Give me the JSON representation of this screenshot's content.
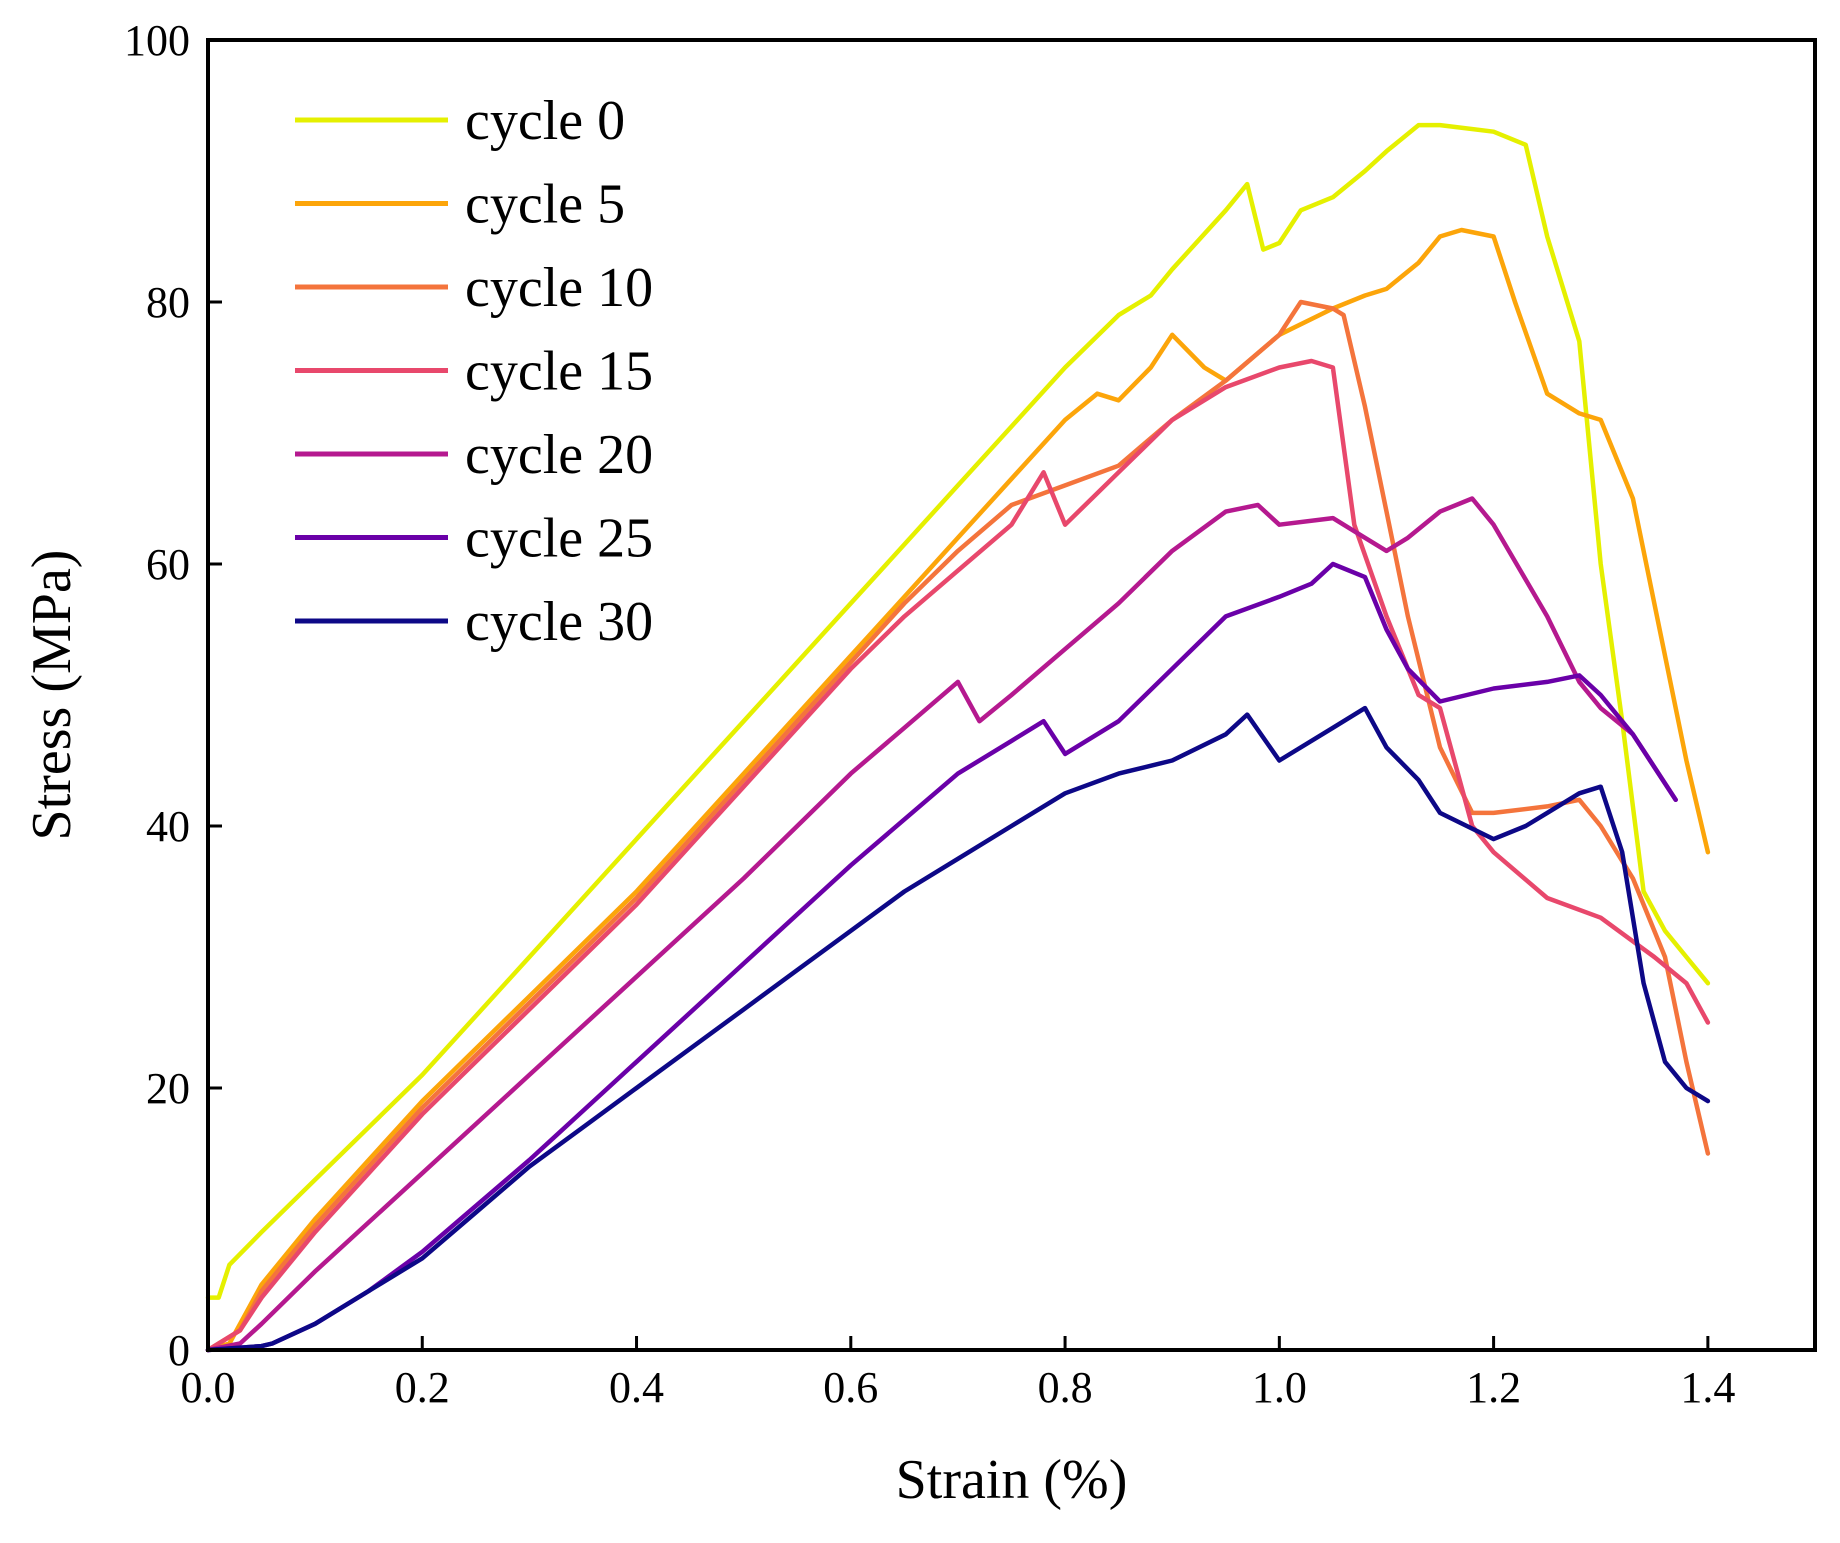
{
  "chart_data": {
    "type": "line",
    "title": "",
    "xlabel": "Strain (%)",
    "ylabel": "Stress (MPa)",
    "xlim": [
      0.0,
      1.5
    ],
    "ylim": [
      0,
      100
    ],
    "xticks": [
      0.0,
      0.2,
      0.4,
      0.6,
      0.8,
      1.0,
      1.2,
      1.4
    ],
    "xtick_labels": [
      "0.0",
      "0.2",
      "0.4",
      "0.6",
      "0.8",
      "1.0",
      "1.2",
      "1.4"
    ],
    "yticks": [
      0,
      20,
      40,
      60,
      80,
      100
    ],
    "ytick_labels": [
      "0",
      "20",
      "40",
      "60",
      "80",
      "100"
    ],
    "grid": false,
    "legend_position": "top-left",
    "series": [
      {
        "name": "cycle 0",
        "color": "#e5f000",
        "x": [
          0.0,
          0.01,
          0.02,
          0.05,
          0.1,
          0.15,
          0.2,
          0.25,
          0.3,
          0.35,
          0.4,
          0.45,
          0.5,
          0.55,
          0.6,
          0.65,
          0.7,
          0.75,
          0.8,
          0.85,
          0.88,
          0.9,
          0.95,
          0.97,
          0.985,
          1.0,
          1.02,
          1.05,
          1.08,
          1.1,
          1.13,
          1.15,
          1.2,
          1.23,
          1.25,
          1.28,
          1.3,
          1.32,
          1.34,
          1.36,
          1.38,
          1.4
        ],
        "y": [
          4,
          4,
          6.5,
          9,
          13,
          17,
          21,
          25.5,
          30,
          34.5,
          39,
          43.5,
          48,
          52.5,
          57,
          61.5,
          66,
          70.5,
          75,
          79,
          80.5,
          82.5,
          87,
          89,
          84,
          84.5,
          87,
          88,
          90,
          91.5,
          93.5,
          93.5,
          93,
          92,
          85,
          77,
          60,
          48,
          35,
          32,
          30,
          28
        ]
      },
      {
        "name": "cycle 5",
        "color": "#fca50a",
        "x": [
          0.0,
          0.02,
          0.05,
          0.1,
          0.15,
          0.2,
          0.25,
          0.3,
          0.35,
          0.4,
          0.45,
          0.5,
          0.55,
          0.6,
          0.65,
          0.7,
          0.75,
          0.8,
          0.83,
          0.85,
          0.88,
          0.9,
          0.93,
          0.95,
          1.0,
          1.05,
          1.08,
          1.1,
          1.13,
          1.15,
          1.17,
          1.2,
          1.22,
          1.25,
          1.28,
          1.3,
          1.33,
          1.35,
          1.38,
          1.4
        ],
        "y": [
          0,
          0.5,
          5,
          10,
          14.5,
          19,
          23,
          27,
          31,
          35,
          39.5,
          44,
          48.5,
          53,
          57.5,
          62,
          66.5,
          71,
          73,
          72.5,
          75,
          77.5,
          75,
          74,
          77.5,
          79.5,
          80.5,
          81,
          83,
          85,
          85.5,
          85,
          80,
          73,
          71.5,
          71,
          65,
          57,
          45,
          38
        ]
      },
      {
        "name": "cycle 10",
        "color": "#f4743c",
        "x": [
          0.0,
          0.03,
          0.05,
          0.1,
          0.15,
          0.2,
          0.25,
          0.3,
          0.35,
          0.4,
          0.45,
          0.5,
          0.55,
          0.6,
          0.65,
          0.7,
          0.75,
          0.8,
          0.85,
          0.9,
          0.95,
          1.0,
          1.02,
          1.05,
          1.06,
          1.08,
          1.1,
          1.12,
          1.15,
          1.18,
          1.2,
          1.25,
          1.28,
          1.3,
          1.33,
          1.36,
          1.38,
          1.4
        ],
        "y": [
          0,
          1.5,
          4.5,
          9.5,
          14,
          18.5,
          22.5,
          26.5,
          30.5,
          34.5,
          39,
          43.5,
          48,
          52.5,
          57,
          61,
          64.5,
          66,
          67.5,
          71,
          74,
          77.5,
          80,
          79.5,
          79,
          72,
          64,
          56,
          46,
          41,
          41,
          41.5,
          42,
          40,
          36,
          30,
          22,
          15
        ]
      },
      {
        "name": "cycle 15",
        "color": "#e8486c",
        "x": [
          0.0,
          0.03,
          0.05,
          0.1,
          0.15,
          0.2,
          0.25,
          0.3,
          0.35,
          0.4,
          0.45,
          0.5,
          0.55,
          0.6,
          0.65,
          0.7,
          0.75,
          0.78,
          0.8,
          0.85,
          0.9,
          0.95,
          1.0,
          1.03,
          1.05,
          1.07,
          1.1,
          1.13,
          1.15,
          1.18,
          1.2,
          1.25,
          1.3,
          1.35,
          1.38,
          1.4
        ],
        "y": [
          0,
          1.5,
          4,
          9,
          13.5,
          18,
          22,
          26,
          30,
          34,
          38.5,
          43,
          47.5,
          52,
          56,
          59.5,
          63,
          67,
          63,
          67,
          71,
          73.5,
          75,
          75.5,
          75,
          63,
          56,
          50,
          49,
          40,
          38,
          34.5,
          33,
          30,
          28,
          25
        ]
      },
      {
        "name": "cycle 20",
        "color": "#b5198f",
        "x": [
          0.0,
          0.03,
          0.05,
          0.1,
          0.2,
          0.3,
          0.4,
          0.5,
          0.6,
          0.65,
          0.7,
          0.72,
          0.75,
          0.8,
          0.85,
          0.9,
          0.95,
          0.98,
          1.0,
          1.05,
          1.08,
          1.1,
          1.12,
          1.15,
          1.18,
          1.2,
          1.25,
          1.28,
          1.3,
          1.33,
          1.37
        ],
        "y": [
          0,
          0.5,
          2,
          6,
          13.5,
          21,
          28.5,
          36,
          44,
          47.5,
          51,
          48,
          50,
          53.5,
          57,
          61,
          64,
          64.5,
          63,
          63.5,
          62,
          61,
          62,
          64,
          65,
          63,
          56,
          51,
          49,
          47,
          42
        ]
      },
      {
        "name": "cycle 25",
        "color": "#6a00a8",
        "x": [
          0.0,
          0.05,
          0.06,
          0.1,
          0.15,
          0.2,
          0.3,
          0.4,
          0.5,
          0.6,
          0.7,
          0.75,
          0.78,
          0.8,
          0.85,
          0.9,
          0.95,
          1.0,
          1.03,
          1.05,
          1.08,
          1.1,
          1.12,
          1.15,
          1.2,
          1.25,
          1.28,
          1.3,
          1.33,
          1.37
        ],
        "y": [
          0,
          0.3,
          0.5,
          2,
          4.5,
          7.5,
          14.5,
          22,
          29.5,
          37,
          44,
          46.5,
          48,
          45.5,
          48,
          52,
          56,
          57.5,
          58.5,
          60,
          59,
          55,
          52,
          49.5,
          50.5,
          51,
          51.5,
          50,
          47,
          42
        ]
      },
      {
        "name": "cycle 30",
        "color": "#0d0887",
        "x": [
          0.0,
          0.05,
          0.06,
          0.1,
          0.15,
          0.2,
          0.25,
          0.3,
          0.35,
          0.4,
          0.45,
          0.5,
          0.55,
          0.6,
          0.65,
          0.7,
          0.75,
          0.8,
          0.85,
          0.9,
          0.95,
          0.97,
          1.0,
          1.05,
          1.08,
          1.1,
          1.13,
          1.15,
          1.2,
          1.23,
          1.25,
          1.28,
          1.3,
          1.32,
          1.34,
          1.36,
          1.38,
          1.4
        ],
        "y": [
          0,
          0.3,
          0.5,
          2,
          4.5,
          7,
          10.5,
          14,
          17,
          20,
          23,
          26,
          29,
          32,
          35,
          37.5,
          40,
          42.5,
          44,
          45,
          47,
          48.5,
          45,
          47.5,
          49,
          46,
          43.5,
          41,
          39,
          40,
          41,
          42.5,
          43,
          38,
          28,
          22,
          20,
          19
        ]
      }
    ]
  }
}
